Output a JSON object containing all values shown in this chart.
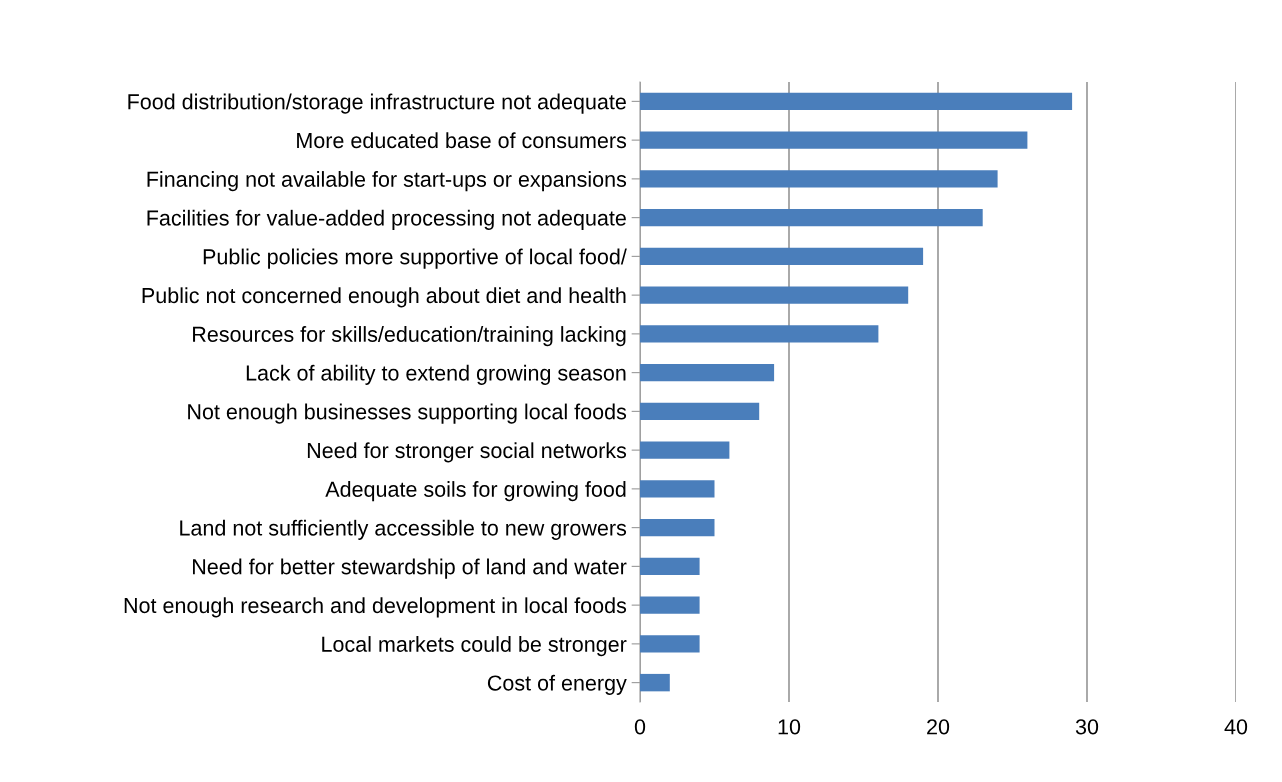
{
  "chart_data": {
    "type": "bar",
    "orientation": "horizontal",
    "categories": [
      "Food distribution/storage infrastructure not adequate",
      "More educated base of consumers",
      "Financing not available for start-ups or expansions",
      "Facilities for value-added processing not adequate",
      "Public policies more supportive of local food/",
      "Public not concerned enough about diet and health",
      "Resources for skills/education/training lacking",
      "Lack of ability to extend growing season",
      "Not enough businesses supporting local foods",
      "Need for stronger social networks",
      "Adequate soils for growing food",
      "Land not sufficiently accessible to new growers",
      "Need for better stewardship of land and water",
      "Not enough research and development in local foods",
      "Local markets could be stronger",
      "Cost of energy"
    ],
    "values": [
      29,
      26,
      24,
      23,
      19,
      18,
      16,
      9,
      8,
      6,
      5,
      5,
      4,
      4,
      4,
      2
    ],
    "color": "#4a7ebb",
    "xlim": [
      0,
      40
    ],
    "xticks": [
      0,
      10,
      20,
      30,
      40
    ],
    "grid": "x",
    "legend": false
  }
}
